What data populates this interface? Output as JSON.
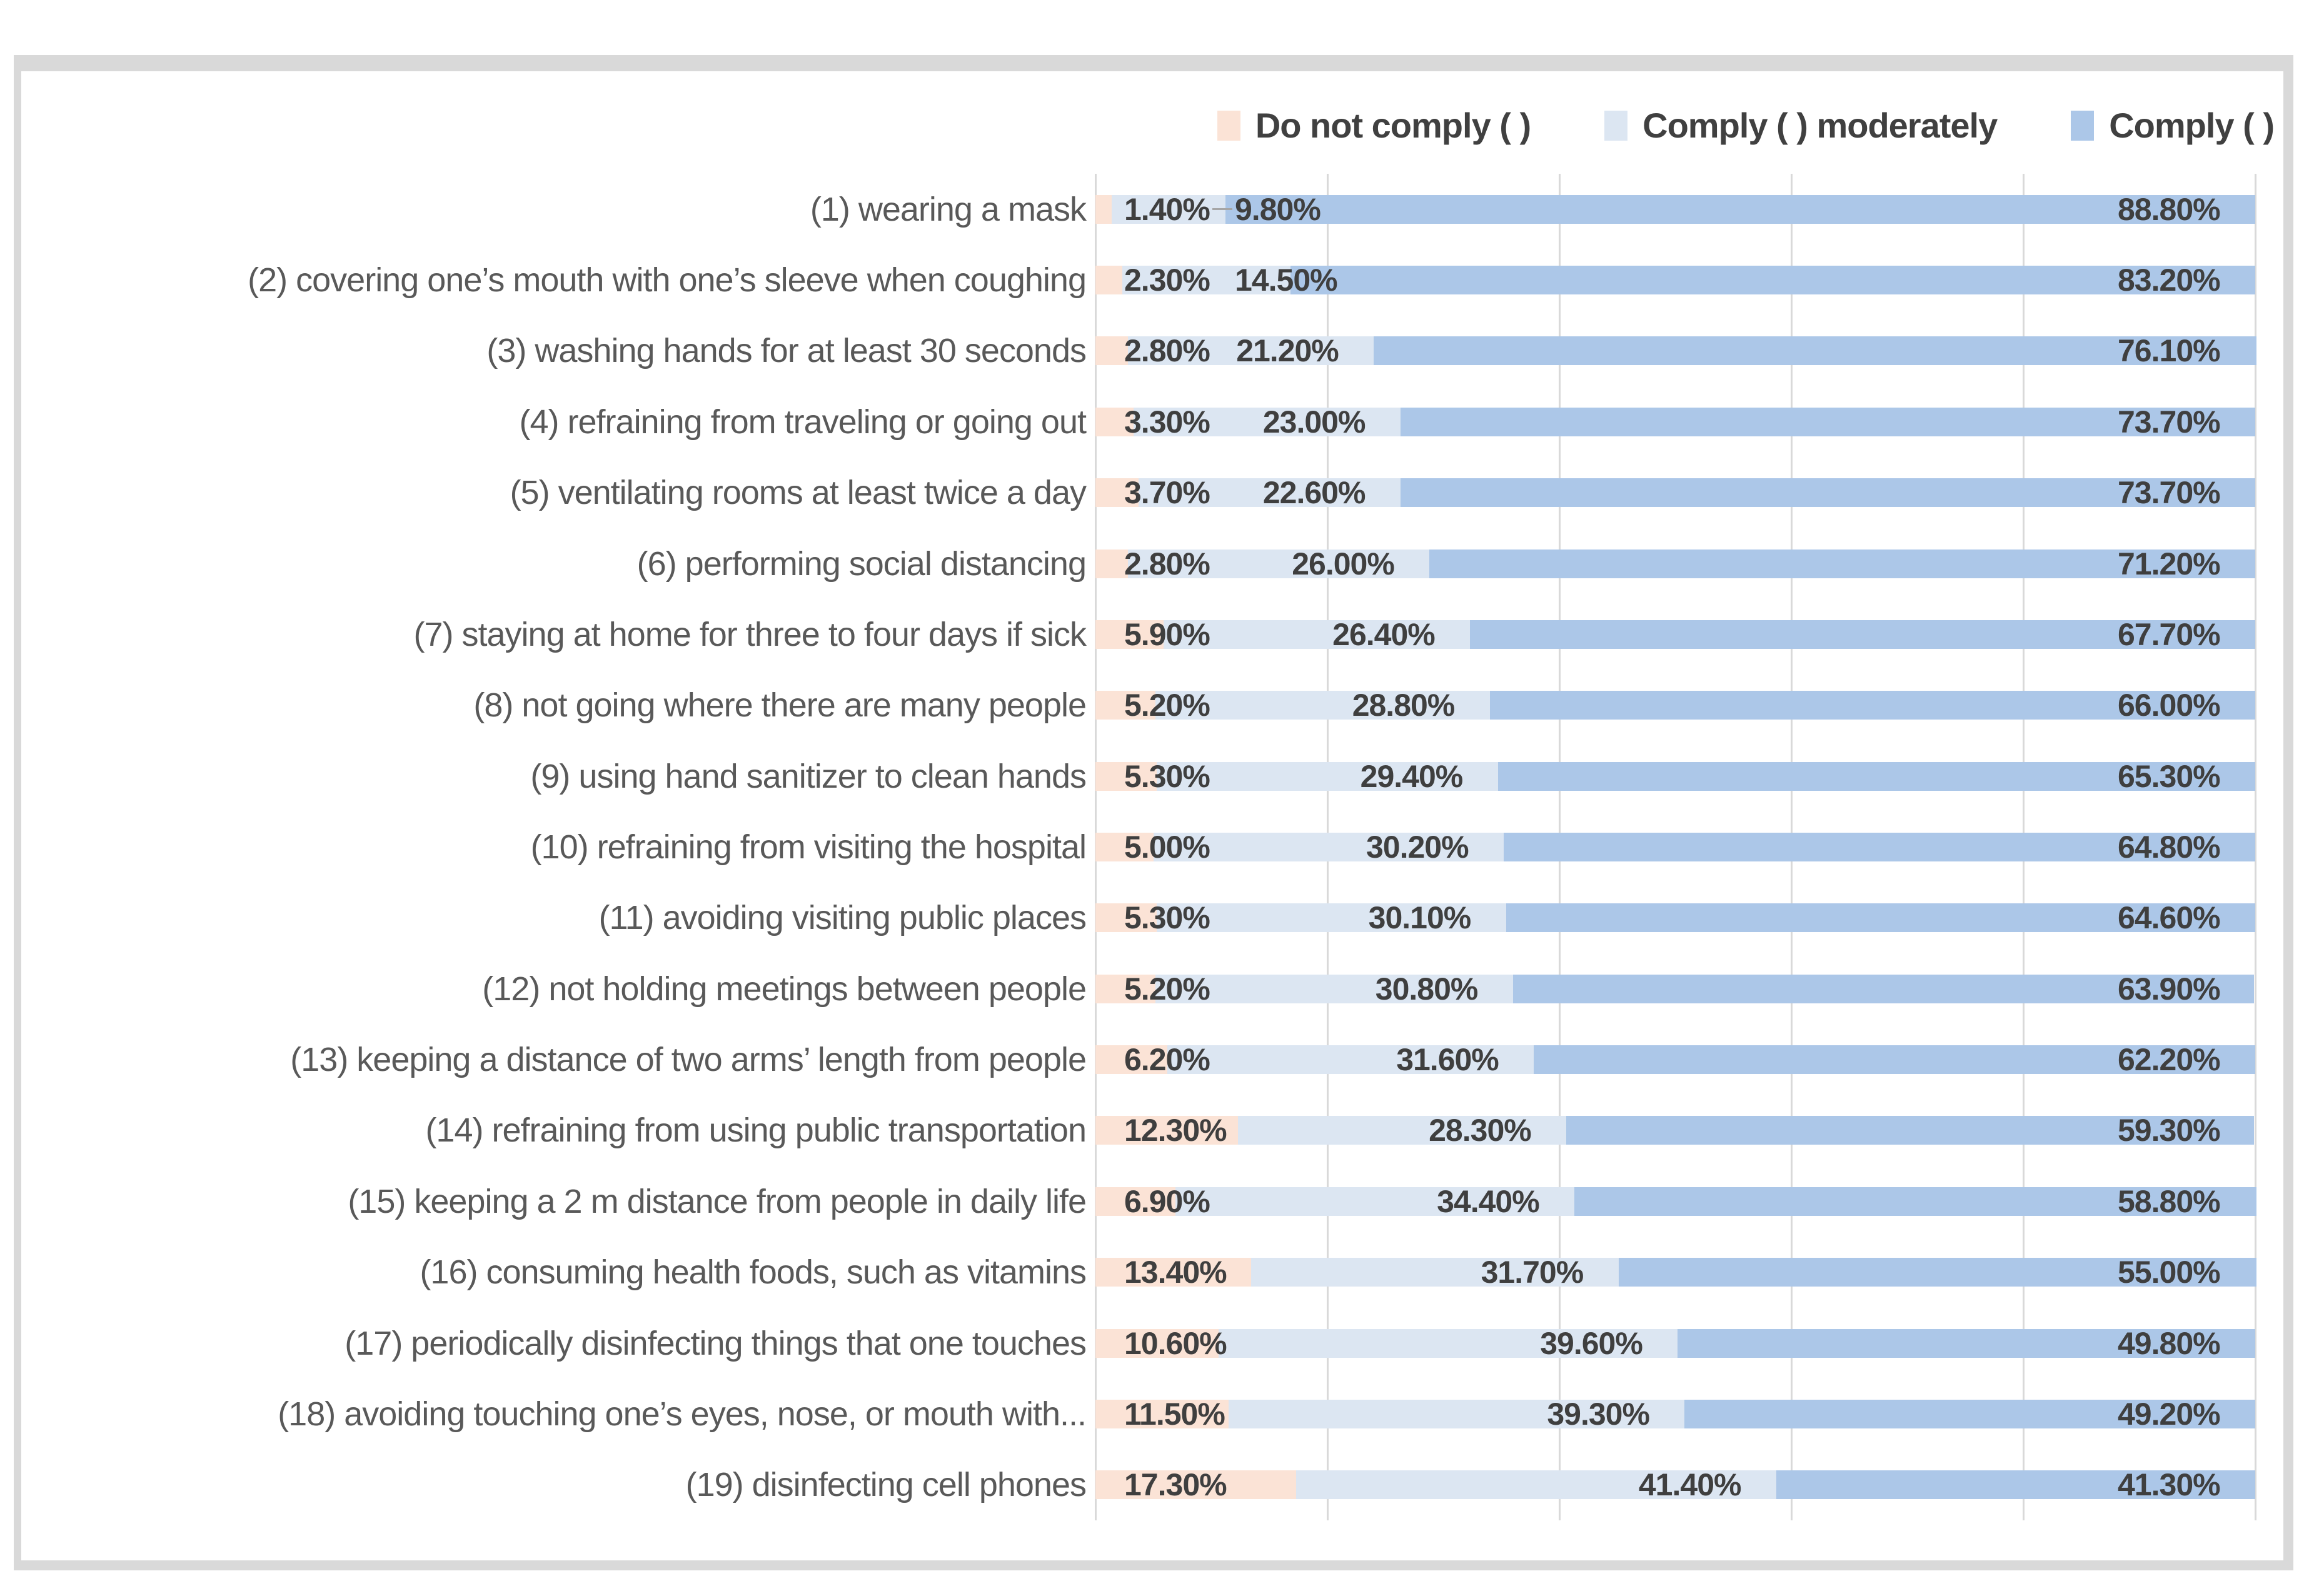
{
  "chart_data": {
    "type": "bar",
    "orientation": "horizontal",
    "stacked": true,
    "title": "",
    "xlabel": "",
    "ylabel": "",
    "xlim": [
      0,
      100
    ],
    "grid": true,
    "gridlines_percent": [
      0,
      20,
      40,
      60,
      80,
      100
    ],
    "legend_position": "top-right",
    "value_label_format": "0.00%",
    "categories": [
      "(1) wearing a mask",
      "(2) covering one’s mouth with one’s sleeve when coughing",
      "(3) washing hands for at least 30 seconds",
      "(4) refraining from traveling or going out",
      "(5) ventilating rooms at least twice a day",
      "(6) performing social distancing",
      "(7) staying at home for three to four days if sick",
      "(8) not going where there are many people",
      "(9) using hand sanitizer to clean hands",
      "(10) refraining from visiting the hospital",
      "(11) avoiding visiting public places",
      "(12) not holding meetings between people",
      "(13) keeping a distance of two arms’ length from people",
      "(14) refraining from using public transportation",
      "(15) keeping a 2 m distance from people in daily life",
      "(16) consuming health foods, such as vitamins",
      "(17) periodically disinfecting things that one touches",
      "(18) avoiding touching one’s eyes, nose, or mouth with...",
      "(19) disinfecting cell phones"
    ],
    "series": [
      {
        "name": "Do not comply ( )",
        "color": "#FBE3D6",
        "values": [
          1.4,
          2.3,
          2.8,
          3.3,
          3.7,
          2.8,
          5.9,
          5.2,
          5.3,
          5.0,
          5.3,
          5.2,
          6.2,
          12.3,
          6.9,
          13.4,
          10.6,
          11.5,
          17.3
        ]
      },
      {
        "name": "Comply ( ) moderately",
        "color": "#DCE6F2",
        "values": [
          9.8,
          14.5,
          21.2,
          23.0,
          22.6,
          26.0,
          26.4,
          28.8,
          29.4,
          30.2,
          30.1,
          30.8,
          31.6,
          28.3,
          34.4,
          31.7,
          39.6,
          39.3,
          41.4
        ]
      },
      {
        "name": "Comply ( )",
        "color": "#ACC7E8",
        "values": [
          88.8,
          83.2,
          76.1,
          73.7,
          73.7,
          71.2,
          67.7,
          66.0,
          65.3,
          64.8,
          64.6,
          63.9,
          62.2,
          59.3,
          58.8,
          55.0,
          49.8,
          49.2,
          41.3
        ]
      }
    ],
    "colors": {
      "grid": "#D9D9D9",
      "category_label": "#595959",
      "value_label": "#3F3F3F",
      "legend_label": "#404040",
      "leader_line": "#A6A6A6",
      "frame_border": "#D9D9D9",
      "background": "#FFFFFF"
    }
  }
}
